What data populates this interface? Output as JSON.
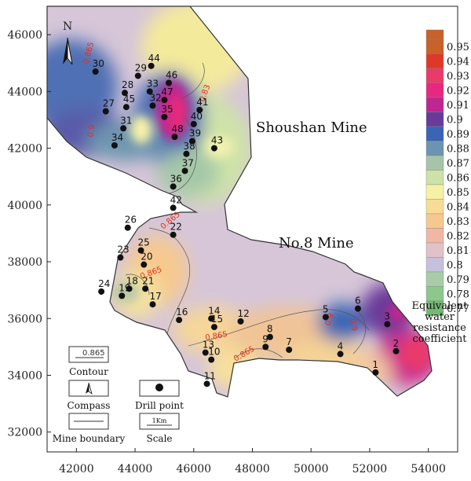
{
  "x_axis": {
    "ticks": [
      "42000",
      "44000",
      "46000",
      "48000",
      "50000",
      "52000",
      "54000"
    ],
    "min": 41000,
    "max": 55000
  },
  "y_axis": {
    "ticks": [
      "32000",
      "34000",
      "36000",
      "38000",
      "40000",
      "42000",
      "44000",
      "46000"
    ],
    "min": 31300,
    "max": 47000
  },
  "compass_letter": "N",
  "mines": [
    {
      "name": "Shoushan Mine"
    },
    {
      "name": "No.8 Mine"
    }
  ],
  "colorbar": {
    "title_lines": [
      "Equivalent",
      "water",
      "resistance",
      "coefficient"
    ],
    "levels": [
      "0.95",
      "0.94",
      "0.93",
      "0.92",
      "0.91",
      "0.9",
      "0.89",
      "0.88",
      "0.87",
      "0.86",
      "0.85",
      "0.84",
      "0.83",
      "0.82",
      "0.81",
      "0.8",
      "0.79",
      "0.78",
      "0.77"
    ],
    "colors": [
      "#c8612a",
      "#e03828",
      "#ea3a6a",
      "#e6287e",
      "#c0268f",
      "#6a3a9a",
      "#3a64b4",
      "#6c94b0",
      "#a6c4a8",
      "#cce2a8",
      "#f6f2a4",
      "#f8dc96",
      "#f6c890",
      "#efb8a4",
      "#e2c2c8",
      "#c6c0dc",
      "#a8cca8",
      "#8cc88c",
      "#74b874"
    ]
  },
  "contours": [
    "0.865",
    "0.865",
    "0.865",
    "0.865",
    "0.9",
    "0.9",
    "0.83",
    "0.865",
    "0.9"
  ],
  "drill_points": [
    {
      "id": "1",
      "x": 52200,
      "y": 34100
    },
    {
      "id": "2",
      "x": 52900,
      "y": 34850
    },
    {
      "id": "3",
      "x": 52600,
      "y": 35800
    },
    {
      "id": "4",
      "x": 51000,
      "y": 34750
    },
    {
      "id": "5",
      "x": 50500,
      "y": 36050
    },
    {
      "id": "6",
      "x": 51600,
      "y": 36350
    },
    {
      "id": "7",
      "x": 49250,
      "y": 34900
    },
    {
      "id": "8",
      "x": 48600,
      "y": 35350
    },
    {
      "id": "9",
      "x": 48450,
      "y": 35000
    },
    {
      "id": "10",
      "x": 46600,
      "y": 34550
    },
    {
      "id": "11",
      "x": 46450,
      "y": 33700
    },
    {
      "id": "12",
      "x": 47600,
      "y": 35900
    },
    {
      "id": "13",
      "x": 46400,
      "y": 34800
    },
    {
      "id": "14",
      "x": 46600,
      "y": 36000
    },
    {
      "id": "15",
      "x": 46700,
      "y": 35700
    },
    {
      "id": "16",
      "x": 45500,
      "y": 35950
    },
    {
      "id": "17",
      "x": 44600,
      "y": 36500
    },
    {
      "id": "18",
      "x": 43800,
      "y": 37050
    },
    {
      "id": "19",
      "x": 43550,
      "y": 36800
    },
    {
      "id": "20",
      "x": 44300,
      "y": 37900
    },
    {
      "id": "21",
      "x": 44350,
      "y": 37050
    },
    {
      "id": "22",
      "x": 45300,
      "y": 38950
    },
    {
      "id": "23",
      "x": 43500,
      "y": 38150
    },
    {
      "id": "24",
      "x": 42850,
      "y": 36950
    },
    {
      "id": "25",
      "x": 44200,
      "y": 38400
    },
    {
      "id": "26",
      "x": 43750,
      "y": 39200
    },
    {
      "id": "27",
      "x": 43000,
      "y": 43300
    },
    {
      "id": "28",
      "x": 43650,
      "y": 43950
    },
    {
      "id": "29",
      "x": 44100,
      "y": 44550
    },
    {
      "id": "30",
      "x": 42650,
      "y": 44700
    },
    {
      "id": "31",
      "x": 43600,
      "y": 42700
    },
    {
      "id": "32",
      "x": 44600,
      "y": 43500
    },
    {
      "id": "33",
      "x": 44500,
      "y": 44000
    },
    {
      "id": "34",
      "x": 43300,
      "y": 42100
    },
    {
      "id": "35",
      "x": 45000,
      "y": 43100
    },
    {
      "id": "36",
      "x": 45300,
      "y": 40650
    },
    {
      "id": "37",
      "x": 45700,
      "y": 41200
    },
    {
      "id": "38",
      "x": 45750,
      "y": 41800
    },
    {
      "id": "39",
      "x": 45950,
      "y": 42250
    },
    {
      "id": "40",
      "x": 46000,
      "y": 42850
    },
    {
      "id": "41",
      "x": 46200,
      "y": 43350
    },
    {
      "id": "42",
      "x": 45300,
      "y": 39900
    },
    {
      "id": "43",
      "x": 46700,
      "y": 42000
    },
    {
      "id": "44",
      "x": 44550,
      "y": 44900
    },
    {
      "id": "45",
      "x": 43700,
      "y": 43450
    },
    {
      "id": "46",
      "x": 45150,
      "y": 44300
    },
    {
      "id": "47",
      "x": 45000,
      "y": 43700
    },
    {
      "id": "48",
      "x": 45350,
      "y": 42400
    }
  ],
  "key": {
    "contour_sample_value": "0.865",
    "contour_label": "Contour",
    "compass_label": "Compass",
    "drill_label": "Drill point",
    "boundary_label": "Mine boundary",
    "scale_sample": "1Km",
    "scale_label": "Scale"
  }
}
